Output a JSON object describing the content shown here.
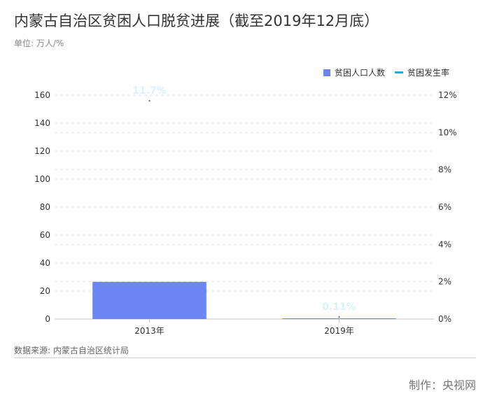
{
  "title": "内蒙古自治区贫困人口脱贫进展（截至2019年12月底）",
  "unit": "单位: 万人/%",
  "source": "数据来源: 内蒙古自治区统计局",
  "credit": "制作：央视网",
  "colors": {
    "bar": "#6c85f2",
    "line": "#3aa3d8",
    "rate_label": "#d6f2fb",
    "grid": "#e3e3e3"
  },
  "chart_data": {
    "type": "bar",
    "categories": [
      "2013年",
      "2019年"
    ],
    "series": [
      {
        "name": "贫困人口人数",
        "type": "bar",
        "axis": "left",
        "values": [
          26.6,
          0.5
        ]
      },
      {
        "name": "贫困发生率",
        "type": "line",
        "axis": "right",
        "values": [
          11.7,
          0.11
        ],
        "labels": [
          "11.7%",
          "0.11%"
        ]
      }
    ],
    "y_left": {
      "min": 0,
      "max": 160,
      "ticks": [
        0,
        20,
        40,
        60,
        80,
        100,
        120,
        140,
        160
      ]
    },
    "y_right": {
      "min": 0,
      "max": 12,
      "ticks": [
        "0%",
        "2%",
        "4%",
        "6%",
        "8%",
        "10%",
        "12%"
      ]
    },
    "grid": true,
    "legend": "top-right"
  }
}
